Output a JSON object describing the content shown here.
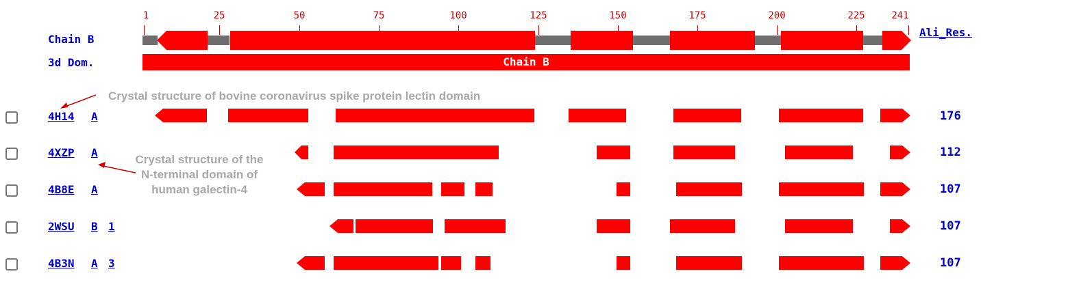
{
  "ruler": {
    "ticks": [
      "1",
      "25",
      "50",
      "75",
      "100",
      "125",
      "150",
      "175",
      "200",
      "225",
      "241"
    ]
  },
  "chain": {
    "label": "Chain B",
    "ali_res_link": "Ali_Res."
  },
  "domain": {
    "label": "3d Dom.",
    "bar_text": "Chain B"
  },
  "hits": [
    {
      "pdb": "4H14",
      "chain": "A",
      "extra": "",
      "count": "176"
    },
    {
      "pdb": "4XZP",
      "chain": "A",
      "extra": "",
      "count": "112"
    },
    {
      "pdb": "4B8E",
      "chain": "A",
      "extra": "",
      "count": "107"
    },
    {
      "pdb": "2WSU",
      "chain": "B",
      "extra": "1",
      "count": "107"
    },
    {
      "pdb": "4B3N",
      "chain": "A",
      "extra": "3",
      "count": "107"
    }
  ],
  "annotations": {
    "first": "Crystal structure of bovine coronavirus spike protein lectin domain",
    "second_line1": "Crystal structure of the",
    "second_line2": "N-terminal domain of",
    "second_line3": "human galectin-4"
  },
  "colors": {
    "feature_red": "#ff0000",
    "loop_gray": "#6e6e6e",
    "link_blue": "#0000cc",
    "annotation_gray": "#a8a8a8"
  }
}
